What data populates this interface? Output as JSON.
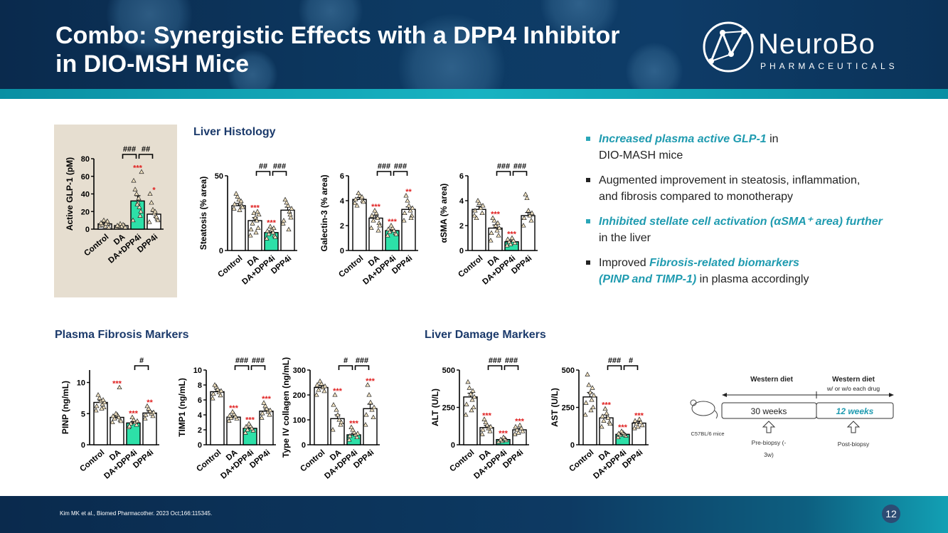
{
  "header": {
    "title_line1": "Combo: Synergistic Effects with a DPP4 Inhibitor",
    "title_line2": "in DIO-MSH Mice",
    "logo_name": "NeuroBo",
    "logo_sub": "PHARMACEUTICALS"
  },
  "sections": {
    "liver_histology": "Liver Histology",
    "plasma_fibrosis": "Plasma Fibrosis Markers",
    "liver_damage": "Liver Damage Markers"
  },
  "bullets": [
    {
      "em": "Increased plasma active GLP-1",
      "text_after": " in",
      "line2": "DIO-MASH mice"
    },
    {
      "text": "Augmented improvement in steatosis, inflammation,",
      "line2": "and fibrosis compared to monotherapy"
    },
    {
      "em": "Inhibited stellate cell activation (αSMA⁺ area) further",
      "line2": "in the liver"
    },
    {
      "text_before": "Improved ",
      "em": "Fibrosis-related biomarkers",
      "em2": "(PINP and TIMP-1)",
      "text_after": " in plasma accordingly"
    }
  ],
  "colors": {
    "combo": "#2de0a8",
    "bar": "#ffffff",
    "sig_red": "#e02020",
    "header": "#0d3a63",
    "accent_teal": "#1f9bb0"
  },
  "chart_data": [
    {
      "id": "glp1",
      "type": "bar",
      "categories": [
        "Control",
        "DA",
        "DA+DPP4i",
        "DPP4i"
      ],
      "values": [
        6,
        4,
        32,
        17
      ],
      "errors": [
        1.5,
        1,
        6,
        3
      ],
      "ylabel": "Active  GLP-1 (pM)",
      "ylim": [
        0,
        80
      ],
      "yticks": [
        "0",
        "20",
        "40",
        "60",
        "80"
      ],
      "sig": [
        "",
        "",
        "***",
        "*"
      ],
      "hash": [
        {
          "label": "###",
          "from": 1,
          "to": 2
        },
        {
          "label": "##",
          "from": 2,
          "to": 3
        }
      ],
      "points": [
        [
          4,
          6,
          8,
          3,
          10,
          5,
          7,
          2,
          9,
          6
        ],
        [
          2,
          4,
          5,
          3,
          6,
          3,
          4,
          2
        ],
        [
          10,
          20,
          25,
          30,
          40,
          45,
          55,
          65,
          15,
          35,
          28
        ],
        [
          8,
          12,
          15,
          18,
          22,
          30,
          40,
          10,
          14,
          20
        ]
      ]
    },
    {
      "id": "steatosis",
      "type": "bar",
      "categories": [
        "Control",
        "DA",
        "DA+DPP4i",
        "DPP4i"
      ],
      "values": [
        30,
        20,
        12,
        27
      ],
      "errors": [
        1.5,
        2,
        1,
        2
      ],
      "ylabel": "Steatosis (% area)",
      "ylim": [
        0,
        50
      ],
      "yticks": [
        "0",
        "50"
      ],
      "sig": [
        "",
        "***",
        "***",
        ""
      ],
      "hash": [
        {
          "label": "##",
          "from": 1,
          "to": 2
        },
        {
          "label": "###",
          "from": 2,
          "to": 3
        }
      ],
      "points": [
        [
          28,
          30,
          32,
          34,
          36,
          38,
          31,
          29,
          33,
          27
        ],
        [
          10,
          15,
          20,
          22,
          25,
          18,
          14,
          24,
          26,
          12
        ],
        [
          8,
          10,
          12,
          14,
          16,
          11,
          13,
          9,
          15
        ],
        [
          18,
          22,
          26,
          30,
          32,
          34,
          20,
          28,
          24,
          14
        ]
      ]
    },
    {
      "id": "galectin",
      "type": "bar",
      "categories": [
        "Control",
        "DA",
        "DA+DPP4i",
        "DPP4i"
      ],
      "values": [
        4.1,
        2.6,
        1.6,
        3.3
      ],
      "errors": [
        0.15,
        0.2,
        0.1,
        0.2
      ],
      "ylabel": "Galectin-3 (% area)",
      "ylim": [
        0,
        6
      ],
      "yticks": [
        "0",
        "2",
        "4",
        "6"
      ],
      "sig": [
        "",
        "***",
        "***",
        "**"
      ],
      "hash": [
        {
          "label": "###",
          "from": 1,
          "to": 2
        },
        {
          "label": "###",
          "from": 2,
          "to": 3
        }
      ],
      "points": [
        [
          3.8,
          4.0,
          4.2,
          4.4,
          4.6,
          3.6,
          4.1,
          3.9,
          4.3
        ],
        [
          1.8,
          2.2,
          2.6,
          3.0,
          3.2,
          2.4,
          2.8,
          2.0,
          1.6
        ],
        [
          1.2,
          1.4,
          1.6,
          1.8,
          2.0,
          1.5,
          1.7,
          1.3
        ],
        [
          2.4,
          2.8,
          3.2,
          3.6,
          4.0,
          4.4,
          3.0,
          3.4,
          2.6
        ]
      ]
    },
    {
      "id": "asma",
      "type": "bar",
      "categories": [
        "Control",
        "DA",
        "DA+DPP4i",
        "DPP4i"
      ],
      "values": [
        3.3,
        1.8,
        0.7,
        2.8
      ],
      "errors": [
        0.25,
        0.25,
        0.1,
        0.25
      ],
      "ylabel": "αSMA (% area)",
      "ylim": [
        0,
        6
      ],
      "yticks": [
        "0",
        "2",
        "4",
        "6"
      ],
      "sig": [
        "",
        "***",
        "***",
        ""
      ],
      "hash": [
        {
          "label": "###",
          "from": 1,
          "to": 2
        },
        {
          "label": "###",
          "from": 2,
          "to": 3
        }
      ],
      "points": [
        [
          2.8,
          3.0,
          3.4,
          3.8,
          4.0,
          2.6,
          3.2,
          3.6
        ],
        [
          0.8,
          1.2,
          1.6,
          2.0,
          2.4,
          2.6,
          1.4,
          1.8,
          2.2
        ],
        [
          0.4,
          0.6,
          0.8,
          1.0,
          0.5,
          0.7,
          0.9
        ],
        [
          2.0,
          2.4,
          2.8,
          3.2,
          4.2,
          4.5,
          2.6,
          3.0
        ]
      ]
    },
    {
      "id": "pinp",
      "type": "bar",
      "categories": [
        "Control",
        "DA",
        "DA+DPP4i",
        "DPP4i"
      ],
      "values": [
        6.8,
        4.4,
        3.5,
        5.1
      ],
      "errors": [
        0.3,
        0.2,
        0.2,
        0.3
      ],
      "ylabel": "PINP (ng/mL)",
      "ylim": [
        0,
        12
      ],
      "yticks": [
        "0",
        "5",
        "10"
      ],
      "sig": [
        "",
        "***",
        "***",
        "**"
      ],
      "hash": [
        {
          "label": "#",
          "from": 2,
          "to": 3
        }
      ],
      "points": [
        [
          5.5,
          6.0,
          6.5,
          7.0,
          7.5,
          8.0,
          6.2,
          6.8,
          7.2,
          5.8
        ],
        [
          3.6,
          4.0,
          4.4,
          4.8,
          5.0,
          4.2,
          4.6,
          3.8,
          9.2
        ],
        [
          2.8,
          3.2,
          3.6,
          4.0,
          4.4,
          3.4,
          3.0,
          3.8
        ],
        [
          4.2,
          4.6,
          5.0,
          5.4,
          5.8,
          6.2,
          4.8,
          5.2
        ]
      ]
    },
    {
      "id": "timp1",
      "type": "bar",
      "categories": [
        "Control",
        "DA",
        "DA+DPP4i",
        "DPP4i"
      ],
      "values": [
        7.1,
        3.7,
        2.2,
        4.5
      ],
      "errors": [
        0.3,
        0.2,
        0.15,
        0.3
      ],
      "ylabel": "TIMP1 (ng/mL)",
      "ylim": [
        0,
        10
      ],
      "yticks": [
        "0",
        "2",
        "4",
        "6",
        "8",
        "10"
      ],
      "sig": [
        "",
        "***",
        "***",
        "***"
      ],
      "hash": [
        {
          "label": "###",
          "from": 1,
          "to": 2
        },
        {
          "label": "###",
          "from": 2,
          "to": 3
        }
      ],
      "points": [
        [
          6.2,
          6.6,
          7.0,
          7.4,
          7.8,
          8.0,
          6.8,
          7.2
        ],
        [
          3.2,
          3.5,
          3.8,
          4.1,
          4.4,
          3.6,
          3.9
        ],
        [
          1.6,
          1.9,
          2.2,
          2.5,
          2.8,
          2.0,
          2.4
        ],
        [
          3.6,
          4.0,
          4.4,
          4.8,
          5.2,
          5.6,
          4.2,
          4.6
        ]
      ]
    },
    {
      "id": "col4",
      "type": "bar",
      "categories": [
        "Control",
        "DA",
        "DA+DPP4i",
        "DPP4i"
      ],
      "values": [
        230,
        105,
        40,
        145
      ],
      "errors": [
        8,
        15,
        6,
        18
      ],
      "ylabel": "Type IV collagen (ng/mL)",
      "ylim": [
        0,
        300
      ],
      "yticks": [
        "0",
        "100",
        "200",
        "300"
      ],
      "sig": [
        "",
        "***",
        "***",
        "***"
      ],
      "hash": [
        {
          "label": "#",
          "from": 1,
          "to": 2
        },
        {
          "label": "###",
          "from": 2,
          "to": 3
        }
      ],
      "points": [
        [
          200,
          215,
          230,
          245,
          255,
          220,
          240,
          235
        ],
        [
          60,
          80,
          100,
          120,
          140,
          200,
          160,
          90
        ],
        [
          20,
          30,
          40,
          50,
          60,
          70,
          35,
          45
        ],
        [
          80,
          110,
          140,
          170,
          200,
          240,
          120,
          150
        ]
      ]
    },
    {
      "id": "alt",
      "type": "bar",
      "categories": [
        "Control",
        "DA",
        "DA+DPP4i",
        "DPP4i"
      ],
      "values": [
        320,
        115,
        35,
        100
      ],
      "errors": [
        25,
        15,
        6,
        10
      ],
      "ylabel": "ALT (U/L)",
      "ylim": [
        0,
        500
      ],
      "yticks": [
        "0",
        "250",
        "500"
      ],
      "sig": [
        "",
        "***",
        "***",
        "***"
      ],
      "hash": [
        {
          "label": "###",
          "from": 1,
          "to": 2
        },
        {
          "label": "###",
          "from": 2,
          "to": 3
        }
      ],
      "points": [
        [
          200,
          250,
          300,
          340,
          380,
          420,
          270,
          320,
          360,
          230
        ],
        [
          70,
          90,
          110,
          130,
          150,
          170,
          100,
          120
        ],
        [
          20,
          30,
          40,
          50,
          25,
          35
        ],
        [
          70,
          90,
          110,
          130,
          80,
          100,
          120
        ]
      ]
    },
    {
      "id": "ast",
      "type": "bar",
      "categories": [
        "Control",
        "DA",
        "DA+DPP4i",
        "DPP4i"
      ],
      "values": [
        320,
        180,
        70,
        145
      ],
      "errors": [
        30,
        20,
        8,
        12
      ],
      "ylabel": "AST (U/L)",
      "ylim": [
        0,
        500
      ],
      "yticks": [
        "0",
        "250",
        "500"
      ],
      "sig": [
        "",
        "***",
        "***",
        "***"
      ],
      "hash": [
        {
          "label": "###",
          "from": 1,
          "to": 2
        },
        {
          "label": "#",
          "from": 2,
          "to": 3
        }
      ],
      "points": [
        [
          200,
          250,
          300,
          350,
          400,
          470,
          280,
          330,
          380,
          230
        ],
        [
          120,
          150,
          180,
          210,
          240,
          160,
          190,
          140
        ],
        [
          50,
          60,
          70,
          80,
          90,
          65,
          75
        ],
        [
          110,
          130,
          150,
          170,
          120,
          140,
          160
        ]
      ]
    }
  ],
  "timeline": {
    "phase1_title": "Western diet",
    "phase2_title": "Western diet",
    "phase2_sub": "w/ or w/o each drug",
    "phase1_duration": "30 weeks",
    "phase2_duration": "12 weeks",
    "mouse_label": "C57BL/6 mice",
    "pre_biopsy_line1": "Pre-biopsy (-",
    "pre_biopsy_line2": "3w)",
    "post_biopsy": "Post-biopsy"
  },
  "footer": {
    "citation": "Kim MK et al., Biomed Pharmacother. 2023 Oct;166:115345.",
    "page": "12"
  }
}
